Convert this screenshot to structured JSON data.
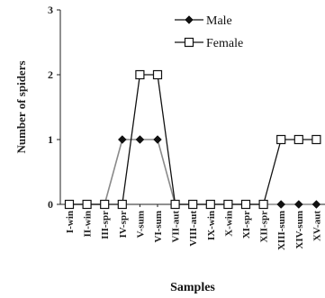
{
  "chart_data": {
    "type": "line",
    "title": "",
    "xlabel": "Samples",
    "ylabel": "Number of spiders",
    "ylim": [
      0,
      3
    ],
    "yticks": [
      "0",
      "1",
      "2",
      "3"
    ],
    "grid": false,
    "legend_position": "top-right",
    "categories": [
      "I-win",
      "II-win",
      "III-spr",
      "IV-spr",
      "V-sum",
      "VI-sum",
      "VII-aut",
      "VIII-aut",
      "IX-win",
      "X-win",
      "XI-spr",
      "XII-spr",
      "XIII-sum",
      "XIV-sum",
      "XV-aut"
    ],
    "series": [
      {
        "name": "Male",
        "marker": "diamond",
        "color": "#8a8a8a",
        "values": [
          0,
          0,
          0,
          1,
          1,
          1,
          0,
          0,
          0,
          0,
          0,
          0,
          0,
          0,
          0
        ]
      },
      {
        "name": "Female",
        "marker": "square",
        "color": "#111111",
        "values": [
          0,
          0,
          0,
          0,
          2,
          2,
          0,
          0,
          0,
          0,
          0,
          0,
          1,
          1,
          1
        ]
      }
    ]
  }
}
